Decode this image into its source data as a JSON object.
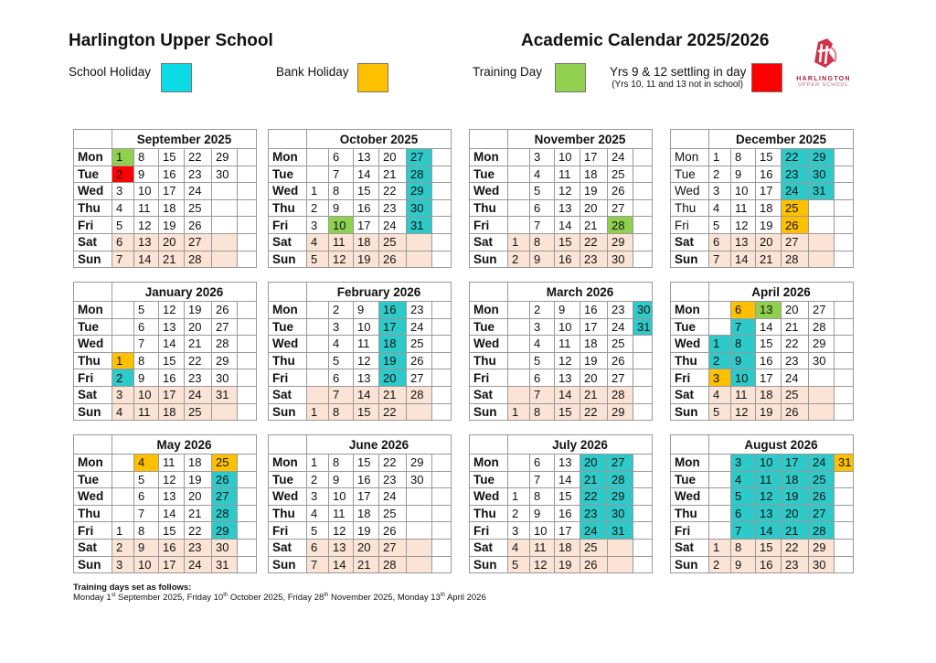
{
  "header": {
    "school_name": "Harlington Upper School",
    "calendar_title": "Academic Calendar 2025/2026"
  },
  "legend": {
    "school_holiday": {
      "label": "School Holiday",
      "color": "#0adbe6"
    },
    "bank_holiday": {
      "label": "Bank Holiday",
      "color": "#ffc000"
    },
    "training_day": {
      "label": "Training Day",
      "color": "#92d050"
    },
    "settling_day": {
      "label": "Yrs 9 & 12 settling in day",
      "note": "(Yrs 10, 11 and 13 not in school)",
      "color": "#ff0000"
    }
  },
  "logo": {
    "line1": "HARLINGTON",
    "line2": "UPPER SCHOOL"
  },
  "colors": {
    "holiday": "#2ec9c9",
    "bank": "#ffc000",
    "training": "#8fd14f",
    "settling": "#ff0000",
    "weekend": "#fbe4d5"
  },
  "day_labels": [
    "Mon",
    "Tue",
    "Wed",
    "Thu",
    "Fri",
    "Sat",
    "Sun"
  ],
  "months": [
    {
      "name": "September 2025",
      "weeks": [
        [
          1,
          2,
          3,
          4,
          5,
          6,
          7
        ],
        [
          8,
          9,
          10,
          11,
          12,
          13,
          14
        ],
        [
          15,
          16,
          17,
          18,
          19,
          20,
          21
        ],
        [
          22,
          23,
          24,
          25,
          26,
          27,
          28
        ],
        [
          29,
          30,
          null,
          null,
          null,
          null,
          null
        ],
        []
      ],
      "marks": {
        "1": "training",
        "2": "settling"
      }
    },
    {
      "name": "October 2025",
      "weeks": [
        [
          null,
          null,
          1,
          2,
          3,
          4,
          5
        ],
        [
          6,
          7,
          8,
          9,
          10,
          11,
          12
        ],
        [
          13,
          14,
          15,
          16,
          17,
          18,
          19
        ],
        [
          20,
          21,
          22,
          23,
          24,
          25,
          26
        ],
        [
          27,
          28,
          29,
          30,
          31,
          null,
          null
        ],
        []
      ],
      "marks": {
        "10": "training",
        "27": "holiday",
        "28": "holiday",
        "29": "holiday",
        "30": "holiday",
        "31": "holiday"
      }
    },
    {
      "name": "November 2025",
      "weeks": [
        [
          null,
          null,
          null,
          null,
          null,
          1,
          2
        ],
        [
          3,
          4,
          5,
          6,
          7,
          8,
          9
        ],
        [
          10,
          11,
          12,
          13,
          14,
          15,
          16
        ],
        [
          17,
          18,
          19,
          20,
          21,
          22,
          23
        ],
        [
          24,
          25,
          26,
          27,
          28,
          29,
          30
        ],
        []
      ],
      "marks": {
        "28": "training"
      }
    },
    {
      "name": "December 2025",
      "regular_weekday_labels": true,
      "weeks": [
        [
          1,
          2,
          3,
          4,
          5,
          6,
          7
        ],
        [
          8,
          9,
          10,
          11,
          12,
          13,
          14
        ],
        [
          15,
          16,
          17,
          18,
          19,
          20,
          21
        ],
        [
          22,
          23,
          24,
          25,
          26,
          27,
          28
        ],
        [
          29,
          30,
          31,
          null,
          null,
          null,
          null
        ],
        []
      ],
      "marks": {
        "22": "holiday",
        "23": "holiday",
        "24": "holiday",
        "25": "bank",
        "26": "bank",
        "29": "holiday",
        "30": "holiday",
        "31": "holiday"
      }
    },
    {
      "name": "January 2026",
      "weeks": [
        [
          null,
          null,
          null,
          1,
          2,
          3,
          4
        ],
        [
          5,
          6,
          7,
          8,
          9,
          10,
          11
        ],
        [
          12,
          13,
          14,
          15,
          16,
          17,
          18
        ],
        [
          19,
          20,
          21,
          22,
          23,
          24,
          25
        ],
        [
          26,
          27,
          28,
          29,
          30,
          31,
          null
        ],
        []
      ],
      "marks": {
        "1": "bank",
        "2": "holiday"
      }
    },
    {
      "name": "February 2026",
      "weeks": [
        [
          null,
          null,
          null,
          null,
          null,
          null,
          1
        ],
        [
          2,
          3,
          4,
          5,
          6,
          7,
          8
        ],
        [
          9,
          10,
          11,
          12,
          13,
          14,
          15
        ],
        [
          16,
          17,
          18,
          19,
          20,
          21,
          22
        ],
        [
          23,
          24,
          25,
          26,
          27,
          28,
          null
        ],
        []
      ],
      "marks": {
        "16": "holiday",
        "17": "holiday",
        "18": "holiday",
        "19": "holiday",
        "20": "holiday"
      }
    },
    {
      "name": "March 2026",
      "weeks": [
        [
          null,
          null,
          null,
          null,
          null,
          null,
          1
        ],
        [
          2,
          3,
          4,
          5,
          6,
          7,
          8
        ],
        [
          9,
          10,
          11,
          12,
          13,
          14,
          15
        ],
        [
          16,
          17,
          18,
          19,
          20,
          21,
          22
        ],
        [
          23,
          24,
          25,
          26,
          27,
          28,
          29
        ],
        [
          30,
          31,
          null,
          null,
          null,
          null,
          null
        ]
      ],
      "marks": {
        "30": "holiday",
        "31": "holiday"
      }
    },
    {
      "name": "April 2026",
      "weeks": [
        [
          null,
          null,
          1,
          2,
          3,
          4,
          5
        ],
        [
          6,
          7,
          8,
          9,
          10,
          11,
          12
        ],
        [
          13,
          14,
          15,
          16,
          17,
          18,
          19
        ],
        [
          20,
          21,
          22,
          23,
          24,
          25,
          26
        ],
        [
          27,
          28,
          29,
          30,
          null,
          null,
          null
        ],
        []
      ],
      "marks": {
        "1": "holiday",
        "2": "holiday",
        "3": "bank",
        "6": "bank",
        "7": "holiday",
        "8": "holiday",
        "9": "holiday",
        "10": "holiday",
        "13": "training"
      }
    },
    {
      "name": "May 2026",
      "weeks": [
        [
          null,
          null,
          null,
          null,
          1,
          2,
          3
        ],
        [
          4,
          5,
          6,
          7,
          8,
          9,
          10
        ],
        [
          11,
          12,
          13,
          14,
          15,
          16,
          17
        ],
        [
          18,
          19,
          20,
          21,
          22,
          23,
          24
        ],
        [
          25,
          26,
          27,
          28,
          29,
          30,
          31
        ],
        []
      ],
      "marks": {
        "4": "bank",
        "25": "bank",
        "26": "holiday",
        "27": "holiday",
        "28": "holiday",
        "29": "holiday"
      }
    },
    {
      "name": "June 2026",
      "weeks": [
        [
          1,
          2,
          3,
          4,
          5,
          6,
          7
        ],
        [
          8,
          9,
          10,
          11,
          12,
          13,
          14
        ],
        [
          15,
          16,
          17,
          18,
          19,
          20,
          21
        ],
        [
          22,
          23,
          24,
          25,
          26,
          27,
          28
        ],
        [
          29,
          30,
          null,
          null,
          null,
          null,
          null
        ],
        []
      ],
      "marks": {}
    },
    {
      "name": "July 2026",
      "weeks": [
        [
          null,
          null,
          1,
          2,
          3,
          4,
          5
        ],
        [
          6,
          7,
          8,
          9,
          10,
          11,
          12
        ],
        [
          13,
          14,
          15,
          16,
          17,
          18,
          19
        ],
        [
          20,
          21,
          22,
          23,
          24,
          25,
          26
        ],
        [
          27,
          28,
          29,
          30,
          31,
          null,
          null
        ],
        []
      ],
      "marks": {
        "20": "holiday",
        "21": "holiday",
        "22": "holiday",
        "23": "holiday",
        "24": "holiday",
        "27": "holiday",
        "28": "holiday",
        "29": "holiday",
        "30": "holiday",
        "31": "holiday"
      }
    },
    {
      "name": "August 2026",
      "weeks": [
        [
          null,
          null,
          null,
          null,
          null,
          1,
          2
        ],
        [
          3,
          4,
          5,
          6,
          7,
          8,
          9
        ],
        [
          10,
          11,
          12,
          13,
          14,
          15,
          16
        ],
        [
          17,
          18,
          19,
          20,
          21,
          22,
          23
        ],
        [
          24,
          25,
          26,
          27,
          28,
          29,
          30
        ],
        [
          31,
          null,
          null,
          null,
          null,
          null,
          null
        ]
      ],
      "marks": {
        "3": "holiday",
        "4": "holiday",
        "5": "holiday",
        "6": "holiday",
        "7": "holiday",
        "10": "holiday",
        "11": "holiday",
        "12": "holiday",
        "13": "holiday",
        "14": "holiday",
        "17": "holiday",
        "18": "holiday",
        "19": "holiday",
        "20": "holiday",
        "21": "holiday",
        "24": "holiday",
        "25": "holiday",
        "26": "holiday",
        "27": "holiday",
        "28": "holiday",
        "31": "bank"
      }
    }
  ],
  "footer": {
    "heading": "Training days set as follows:",
    "items": [
      {
        "pre": "Monday 1",
        "sup": "st",
        "post": " September 2025, "
      },
      {
        "pre": "Friday 10",
        "sup": "th",
        "post": " October 2025, "
      },
      {
        "pre": "Friday 28",
        "sup": "th",
        "post": " November 2025, "
      },
      {
        "pre": "Monday 13",
        "sup": "th",
        "post": " April 2026"
      }
    ]
  }
}
